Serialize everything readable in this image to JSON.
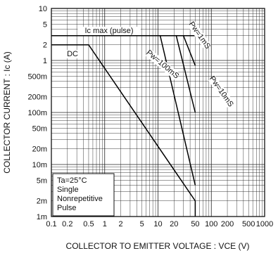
{
  "chart_data": {
    "type": "line",
    "title": "",
    "xlabel": "COLLECTOR TO EMITTER VOLTAGE : VCE (V)",
    "ylabel": "COLLECTOR CURRENT : Ic (A)",
    "x_scale": "log",
    "y_scale": "log",
    "xlim": [
      0.1,
      1000
    ],
    "ylim": [
      0.001,
      10
    ],
    "x_ticks": [
      {
        "value": 0.1,
        "label": "0.1"
      },
      {
        "value": 0.2,
        "label": "0.2"
      },
      {
        "value": 0.5,
        "label": "0.5"
      },
      {
        "value": 1,
        "label": "1"
      },
      {
        "value": 2,
        "label": "2"
      },
      {
        "value": 5,
        "label": "5"
      },
      {
        "value": 10,
        "label": "10"
      },
      {
        "value": 20,
        "label": "20"
      },
      {
        "value": 50,
        "label": "50"
      },
      {
        "value": 100,
        "label": "100"
      },
      {
        "value": 200,
        "label": "200"
      },
      {
        "value": 500,
        "label": "500"
      },
      {
        "value": 1000,
        "label": "1000"
      }
    ],
    "y_ticks": [
      {
        "value": 10,
        "label": "10"
      },
      {
        "value": 5,
        "label": "5"
      },
      {
        "value": 2,
        "label": "2"
      },
      {
        "value": 1,
        "label": "1"
      },
      {
        "value": 0.5,
        "label": "500m"
      },
      {
        "value": 0.2,
        "label": "200m"
      },
      {
        "value": 0.1,
        "label": "100m"
      },
      {
        "value": 0.05,
        "label": "50m"
      },
      {
        "value": 0.02,
        "label": "20m"
      },
      {
        "value": 0.01,
        "label": "10m"
      },
      {
        "value": 0.005,
        "label": "5m"
      },
      {
        "value": 0.002,
        "label": "2m"
      },
      {
        "value": 0.001,
        "label": "1m"
      }
    ],
    "grid": true,
    "series": [
      {
        "name": "DC",
        "x": [
          0.1,
          0.5,
          50,
          50
        ],
        "y": [
          2,
          2,
          0.002,
          0.001
        ]
      },
      {
        "name": "Pw=100mS",
        "x": [
          0.1,
          11,
          50
        ],
        "y": [
          3,
          3,
          0.004
        ]
      },
      {
        "name": "Pw=10mS",
        "x": [
          0.1,
          22,
          50
        ],
        "y": [
          3,
          3,
          0.1
        ]
      },
      {
        "name": "Pw=1mS",
        "x": [
          0.1,
          30,
          50
        ],
        "y": [
          3,
          3,
          0.8
        ]
      },
      {
        "name": "Ic max (pulse)",
        "x": [
          0.1,
          50
        ],
        "y": [
          3,
          3
        ]
      }
    ],
    "annotations": {
      "ic_max": "Ic max (pulse)",
      "dc": "DC",
      "pw_1ms": "Pw=1mS",
      "pw_10ms": "Pw=10mS",
      "pw_100ms": "Pw=100mS",
      "conditions": [
        "Ta=25°C",
        "Single",
        "Nonrepetitive",
        "Pulse"
      ]
    },
    "legend": "none"
  }
}
